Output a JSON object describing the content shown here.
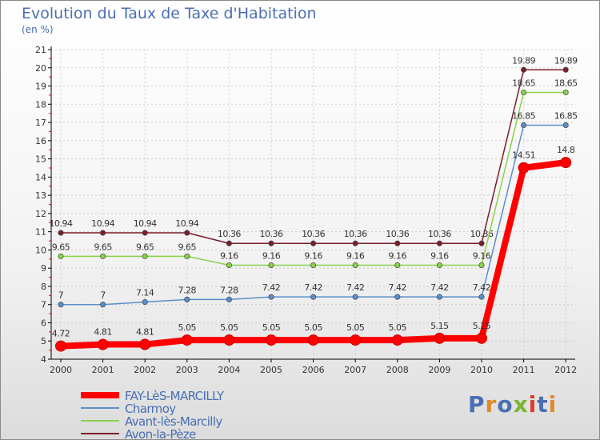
{
  "title": "Evolution du Taux de Taxe d'Habitation",
  "unit": "(en %)",
  "logo": "Proxiti",
  "colors": {
    "grid": "#cccccc",
    "axis": "#000000",
    "label": "#333333",
    "legend_text": "#4a6fb2"
  },
  "chart_data": {
    "type": "line",
    "title": "Evolution du Taux de Taxe d'Habitation",
    "ylabel": "(en %)",
    "xlabel": "",
    "x": [
      2000,
      2001,
      2002,
      2003,
      2004,
      2005,
      2006,
      2007,
      2008,
      2009,
      2010,
      2011,
      2012
    ],
    "ylim": [
      4,
      21
    ],
    "yticks": [
      4,
      5,
      6,
      7,
      8,
      9,
      10,
      11,
      12,
      13,
      14,
      15,
      16,
      17,
      18,
      19,
      20,
      21
    ],
    "grid": true,
    "legend_position": "bottom-left",
    "series": [
      {
        "name": "Avon-la-Pèze",
        "color": "#7a1e2b",
        "values": [
          10.94,
          10.94,
          10.94,
          10.94,
          10.36,
          10.36,
          10.36,
          10.36,
          10.36,
          10.36,
          10.36,
          19.89,
          19.89
        ],
        "labels": [
          "10.94",
          "10.94",
          "10.94",
          "10.94",
          "10.36",
          "10.36",
          "10.36",
          "10.36",
          "10.36",
          "10.36",
          "10.36",
          "19.89",
          "19.89"
        ],
        "thick": false
      },
      {
        "name": "Avant-lès-Marcilly",
        "color": "#88d24a",
        "values": [
          9.65,
          9.65,
          9.65,
          9.65,
          9.16,
          9.16,
          9.16,
          9.16,
          9.16,
          9.16,
          9.16,
          18.65,
          18.65
        ],
        "labels": [
          "9.65",
          "9.65",
          "9.65",
          "9.65",
          "9.16",
          "9.16",
          "9.16",
          "9.16",
          "9.16",
          "9.16",
          "9.16",
          "18.65",
          "18.65"
        ],
        "thick": false
      },
      {
        "name": "Charmoy",
        "color": "#5b8ec9",
        "values": [
          7,
          7,
          7.14,
          7.28,
          7.28,
          7.42,
          7.42,
          7.42,
          7.42,
          7.42,
          7.42,
          16.85,
          16.85
        ],
        "labels": [
          "7",
          "7",
          "7.14",
          "7.28",
          "7.28",
          "7.42",
          "7.42",
          "7.42",
          "7.42",
          "7.42",
          "7.42",
          "16.85",
          "16.85"
        ],
        "thick": false
      },
      {
        "name": "FAY-LèS-MARCILLY",
        "color": "#ff0000",
        "values": [
          4.72,
          4.81,
          4.81,
          5.05,
          5.05,
          5.05,
          5.05,
          5.05,
          5.05,
          5.15,
          5.15,
          14.51,
          14.8
        ],
        "labels": [
          "4.72",
          "4.81",
          "4.81",
          "5.05",
          "5.05",
          "5.05",
          "5.05",
          "5.05",
          "5.05",
          "5.15",
          "5.15",
          "14.51",
          "14.8"
        ],
        "thick": true
      }
    ],
    "legend_order": [
      "FAY-LèS-MARCILLY",
      "Charmoy",
      "Avant-lès-Marcilly",
      "Avon-la-Pèze"
    ]
  }
}
